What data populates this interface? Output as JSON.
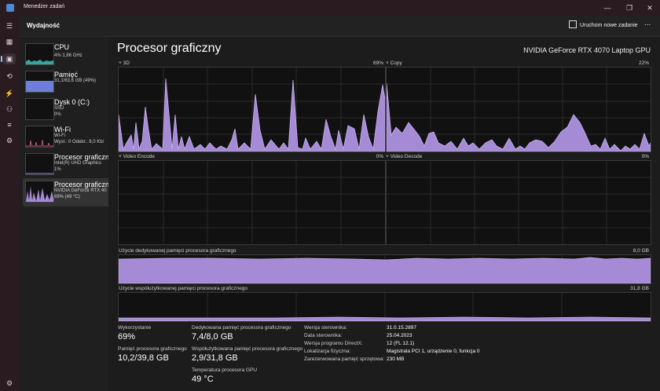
{
  "window": {
    "title": "Menedżer zadań"
  },
  "topbar": {
    "section": "Wydajność",
    "new_task": "Uruchom nowe zadanie",
    "more": "..."
  },
  "sidebar": {
    "items": [
      {
        "name": "CPU",
        "lines": [
          "4%  1,86 GHz"
        ]
      },
      {
        "name": "Pamięć",
        "lines": [
          "31,1/63,6 GB (49%)"
        ]
      },
      {
        "name": "Dysk 0 (C:)",
        "lines": [
          "SSD",
          "0%"
        ]
      },
      {
        "name": "Wi-Fi",
        "lines": [
          "Wi-Fi",
          "Wysł.: 0  Odebr.: 8,0 Kb/"
        ]
      },
      {
        "name": "Procesor graficzny",
        "lines": [
          "Intel(R) UHD Graphics",
          "1%"
        ]
      },
      {
        "name": "Procesor graficzny",
        "lines": [
          "NVIDIA GeForce RTX 40",
          "69% (49 °C)"
        ]
      }
    ]
  },
  "main": {
    "title": "Procesor graficzny",
    "gpu_model": "NVIDIA GeForce RTX 4070 Laptop GPU",
    "engines": [
      {
        "label": "3D",
        "value": "69%"
      },
      {
        "label": "Copy",
        "value": "22%"
      },
      {
        "label": "Video Encode",
        "value": "0%"
      },
      {
        "label": "Video Decode",
        "value": "0%"
      }
    ],
    "dedicated_label": "Użycie dedykowanej pamięci procesora graficznego",
    "dedicated_max": "8,0 GB",
    "shared_label": "Użycie współużytkowanej pamięci procesora graficznego",
    "shared_max": "31,8 GB",
    "stats": {
      "util_label": "Wykorzystanie",
      "util_value": "69%",
      "gpumem_label": "Pamięć procesora graficznego",
      "gpumem_value": "10,2/39,8 GB",
      "ded_label": "Dedykowana pamięć procesora graficznego",
      "ded_value": "7,4/8,0 GB",
      "shared_label": "Współużytkowana pamięć procesora graficznego",
      "shared_value": "2,9/31,8 GB",
      "temp_label": "Temperatura procesora GPU",
      "temp_value": "49 °C"
    },
    "details": [
      {
        "k": "Wersja sterownika:",
        "v": "31.0.15.2897"
      },
      {
        "k": "Data sterownika:",
        "v": "25.04.2023"
      },
      {
        "k": "Wersja programu DirectX:",
        "v": "12 (FL 12.1)"
      },
      {
        "k": "Lokalizacja fizyczna:",
        "v": "Magistrala PCI 1, urządzenie 0, funkcja 0"
      },
      {
        "k": "Zarezerwowana pamięć sprzętowa:",
        "v": "230 MB"
      }
    ]
  },
  "colors": {
    "accent": "#a58ad6",
    "line": "#c9b4ef",
    "grid": "#2b2b2b",
    "memory": "#6d7fd8",
    "cpu": "#3aa3a3",
    "wifi": "#c0567e"
  },
  "icons": [
    "hamburger-icon",
    "processes-icon",
    "performance-icon",
    "history-icon",
    "startup-icon",
    "users-icon",
    "details-icon",
    "services-icon",
    "settings-icon",
    "new-task-icon",
    "gpu-icon"
  ]
}
